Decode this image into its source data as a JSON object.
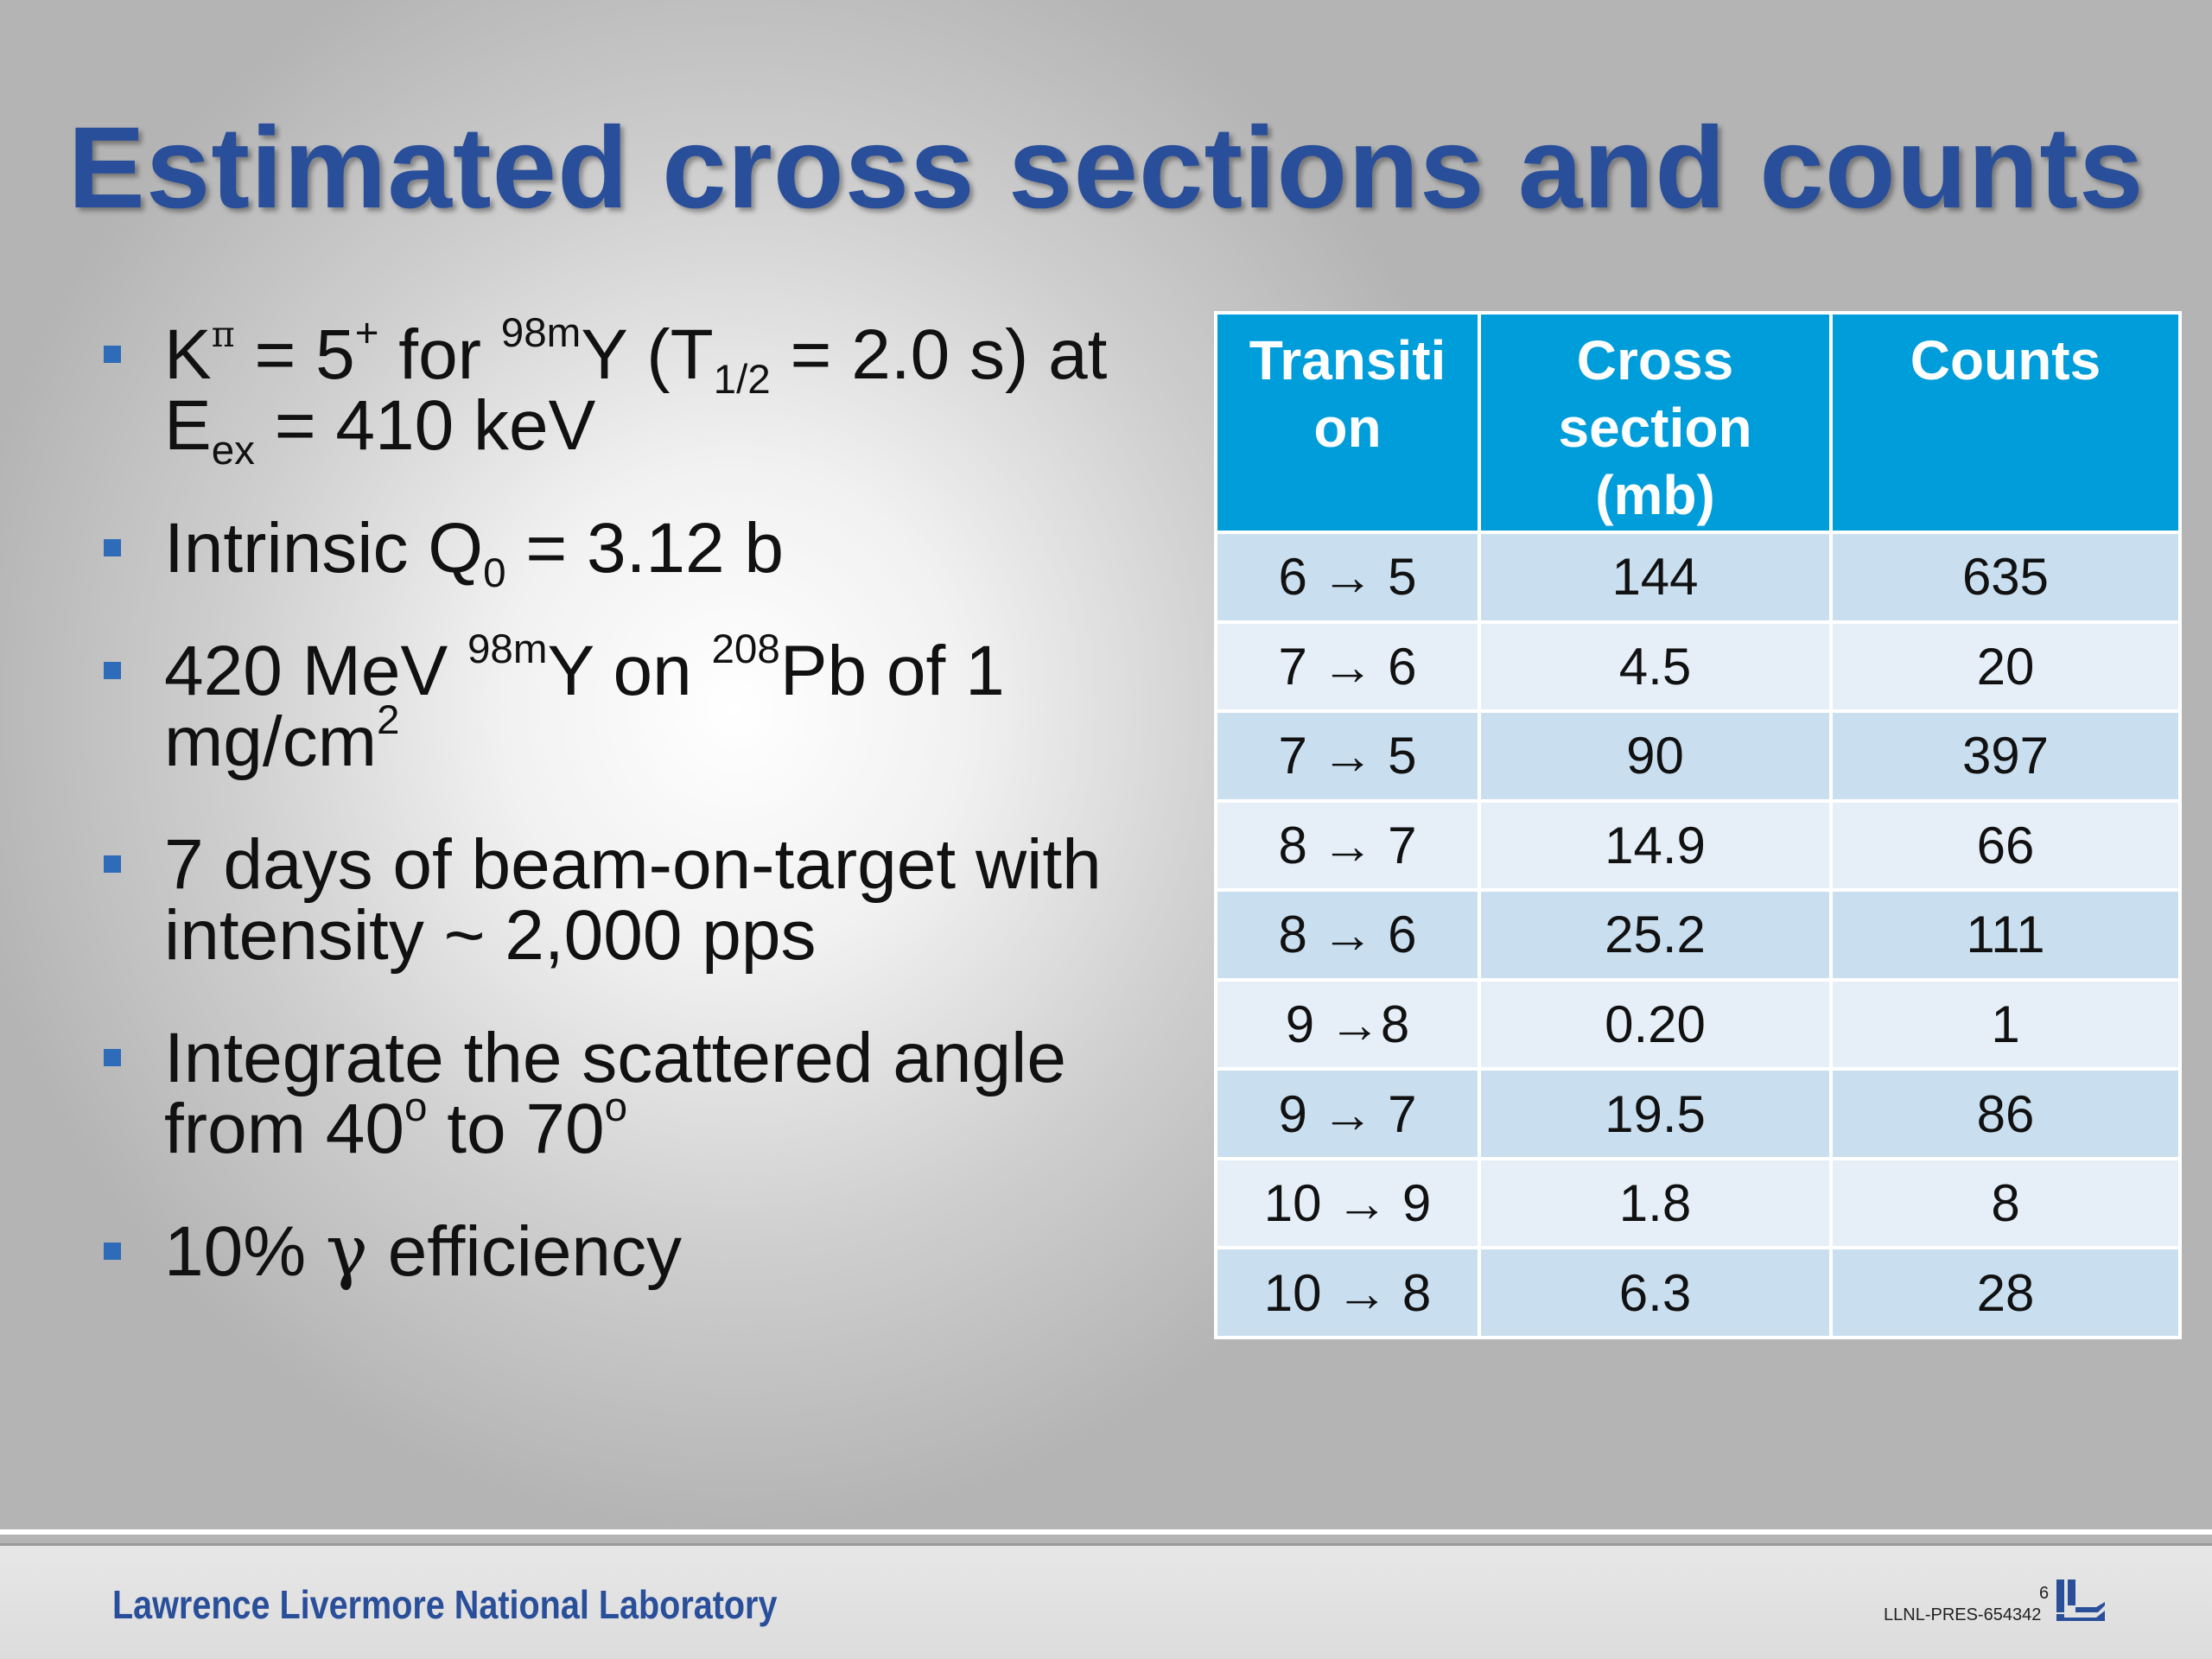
{
  "slide": {
    "title": "Estimated cross sections and counts"
  },
  "bullets": {
    "b1": {
      "k": "K",
      "pi": "π",
      "eq1": " = 5",
      "plus": "+",
      "for": " for ",
      "mass1": "98m",
      "y1": "Y (T",
      "half": "1/2",
      "rest1": " = 2.0 s) at",
      "e": "E",
      "ex": "ex",
      "rest2": " = 410 keV"
    },
    "b2": {
      "pre": "Intrinsic Q",
      "sub": "0",
      "post": " = 3.12 b"
    },
    "b3": {
      "pre": "420 MeV ",
      "mass1": "98m",
      "mid": "Y on ",
      "mass2": "208",
      "post": "Pb of 1",
      "line2": "mg/cm",
      "exp": "2"
    },
    "b4": {
      "line1": "7 days of beam-on-target with",
      "line2": "intensity ~ 2,000 pps"
    },
    "b5": {
      "line1": "Integrate the scattered angle",
      "from": "from 40",
      "deg1": "o",
      "to": " to 70",
      "deg2": "o"
    },
    "b6": {
      "pre": "10% ",
      "gamma": "γ",
      "post": " efficiency"
    }
  },
  "table": {
    "headers": [
      {
        "l1": "Transiti",
        "l2": "on",
        "l3": ""
      },
      {
        "l1": "Cross",
        "l2": "section",
        "l3": "(mb)"
      },
      {
        "l1": "Counts",
        "l2": "",
        "l3": ""
      }
    ],
    "rows": [
      [
        "6 → 5",
        "144",
        "635"
      ],
      [
        "7 → 6",
        "4.5",
        "20"
      ],
      [
        "7 → 5",
        "90",
        "397"
      ],
      [
        "8 → 7",
        "14.9",
        "66"
      ],
      [
        "8 → 6",
        "25.2",
        "111"
      ],
      [
        "9 →8",
        "0.20",
        "1"
      ],
      [
        "9 → 7",
        "19.5",
        "86"
      ],
      [
        "10 → 9",
        "1.8",
        "8"
      ],
      [
        "10 → 8",
        "6.3",
        "28"
      ]
    ]
  },
  "footer": {
    "lab": "Lawrence Livermore National Laboratory",
    "page": "6",
    "code": "LLNL-PRES-654342"
  },
  "colors": {
    "title": "#2a4f9a",
    "header_bg": "#009ddb",
    "row_odd": "#c9dff0",
    "row_even": "#e6eff8",
    "bullet": "#2e6bb8"
  }
}
